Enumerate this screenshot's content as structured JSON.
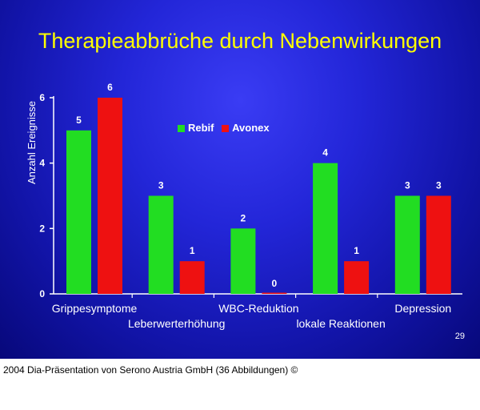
{
  "title": "Therapieabbrüche durch Nebenwirkungen",
  "slide_number": "29",
  "caption": "2004 Dia-Präsentation von Serono Austria GmbH (36 Abbildungen) ©",
  "colors": {
    "rebif": "#22dd22",
    "avonex": "#ee1111",
    "axis_text": "#ffffff",
    "title": "#ffff00"
  },
  "chart_data": {
    "type": "bar",
    "ylabel": "Anzahl Ereignisse",
    "ylim": [
      0,
      6
    ],
    "yticks": [
      "0",
      "2",
      "4",
      "6"
    ],
    "categories": [
      "Grippesymptome",
      "Leberwerterhöhung",
      "WBC-Reduktion",
      "lokale Reaktionen",
      "Depression"
    ],
    "series": [
      {
        "name": "Rebif",
        "values": [
          5,
          3,
          2,
          4,
          3
        ]
      },
      {
        "name": "Avonex",
        "values": [
          6,
          1,
          0,
          1,
          3
        ]
      }
    ],
    "legend": "top-center",
    "grid": false
  }
}
